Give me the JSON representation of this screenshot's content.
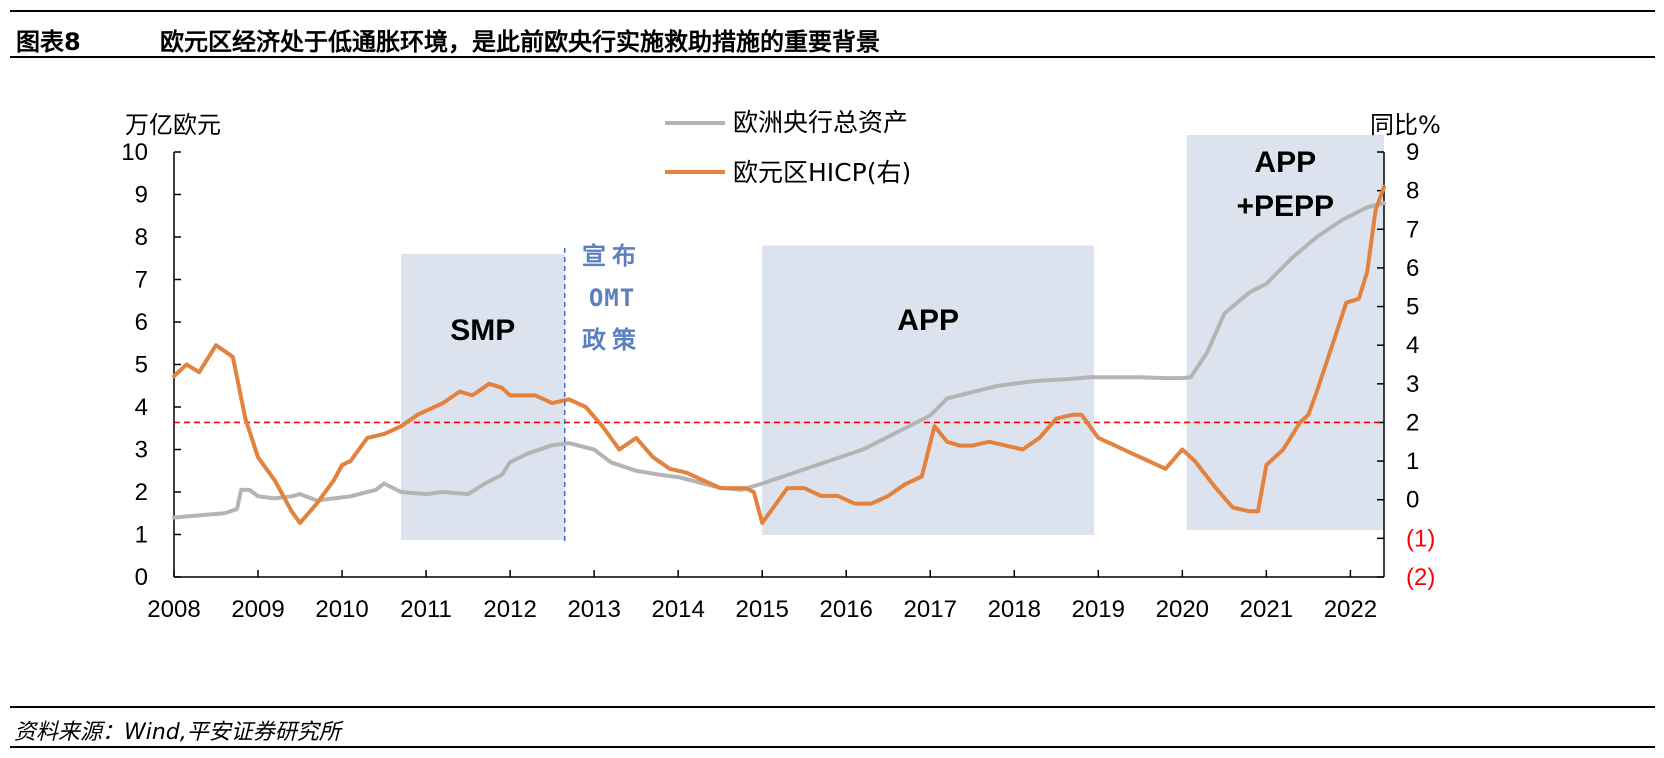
{
  "header": {
    "label": "图表8",
    "title": "欧元区经济处于低通胀环境，是此前欧央行实施救助措施的重要背景"
  },
  "footer": {
    "source": "资料来源：Wind,平安证券研究所"
  },
  "colors": {
    "ecb_line": "#b4b4b4",
    "hicp_line": "#e3823f",
    "shade": "#dde3ee",
    "ref_line": "#ff0000",
    "neg_tick": "#ff0000",
    "omt_text": "#5b7fbf"
  },
  "chart_data": {
    "type": "line",
    "title": "",
    "ylabel_left": "万亿欧元",
    "ylabel_right": "同比%",
    "xlim": [
      2008,
      2022.4
    ],
    "ylim_left": [
      0,
      10
    ],
    "ylim_right": [
      -2,
      9
    ],
    "x_ticks": [
      "2008",
      "2009",
      "2010",
      "2011",
      "2012",
      "2013",
      "2014",
      "2015",
      "2016",
      "2017",
      "2018",
      "2019",
      "2020",
      "2021",
      "2022"
    ],
    "y_left_ticks": [
      "0",
      "1",
      "2",
      "3",
      "4",
      "5",
      "6",
      "7",
      "8",
      "9",
      "10"
    ],
    "y_right_ticks": [
      "(2)",
      "(1)",
      "0",
      "1",
      "2",
      "3",
      "4",
      "5",
      "6",
      "7",
      "8",
      "9"
    ],
    "reference_line": {
      "axis": "right",
      "value": 2
    },
    "legend": [
      "欧洲央行总资产",
      "欧元区HICP(右)"
    ],
    "shaded_regions": [
      {
        "label": "SMP",
        "x_start": 2010.7,
        "x_end": 2012.65,
        "y_top": 7.6
      },
      {
        "label": "APP",
        "x_start": 2015.0,
        "x_end": 2018.95,
        "y_top": 7.8
      },
      {
        "label": "APP",
        "label2": "+PEPP",
        "x_start": 2020.05,
        "x_end": 2022.4,
        "y_top": 10.4
      }
    ],
    "omt": {
      "x": 2012.65,
      "lines": [
        "宣布",
        "OMT",
        "政策"
      ]
    },
    "series": [
      {
        "name": "欧洲央行总资产",
        "axis": "left",
        "x": [
          2008.0,
          2008.3,
          2008.6,
          2008.75,
          2008.8,
          2008.9,
          2009.0,
          2009.2,
          2009.4,
          2009.5,
          2009.7,
          2009.9,
          2010.1,
          2010.3,
          2010.4,
          2010.5,
          2010.7,
          2011.0,
          2011.2,
          2011.5,
          2011.7,
          2011.9,
          2012.0,
          2012.2,
          2012.5,
          2012.7,
          2013.0,
          2013.2,
          2013.5,
          2013.8,
          2014.0,
          2014.3,
          2014.5,
          2014.75,
          2015.0,
          2015.3,
          2015.6,
          2015.9,
          2016.2,
          2016.5,
          2016.8,
          2017.0,
          2017.2,
          2017.5,
          2017.8,
          2018.0,
          2018.3,
          2018.6,
          2018.9,
          2019.2,
          2019.5,
          2019.8,
          2020.0,
          2020.1,
          2020.3,
          2020.5,
          2020.8,
          2021.0,
          2021.3,
          2021.6,
          2021.9,
          2022.2,
          2022.4
        ],
        "y": [
          1.4,
          1.45,
          1.5,
          1.6,
          2.05,
          2.05,
          1.9,
          1.85,
          1.9,
          1.95,
          1.8,
          1.85,
          1.9,
          2.0,
          2.05,
          2.2,
          2.0,
          1.95,
          2.0,
          1.95,
          2.2,
          2.4,
          2.7,
          2.9,
          3.1,
          3.15,
          3.0,
          2.7,
          2.5,
          2.4,
          2.35,
          2.2,
          2.1,
          2.05,
          2.2,
          2.4,
          2.6,
          2.8,
          3.0,
          3.3,
          3.6,
          3.8,
          4.2,
          4.35,
          4.5,
          4.55,
          4.62,
          4.65,
          4.7,
          4.7,
          4.7,
          4.68,
          4.68,
          4.7,
          5.3,
          6.2,
          6.7,
          6.9,
          7.5,
          8.0,
          8.4,
          8.7,
          8.8
        ]
      },
      {
        "name": "欧元区HICP(右)",
        "axis": "right",
        "x": [
          2008.0,
          2008.15,
          2008.3,
          2008.5,
          2008.7,
          2008.85,
          2009.0,
          2009.2,
          2009.4,
          2009.5,
          2009.7,
          2009.9,
          2010.0,
          2010.1,
          2010.3,
          2010.5,
          2010.7,
          2010.9,
          2011.2,
          2011.4,
          2011.55,
          2011.75,
          2011.9,
          2012.0,
          2012.3,
          2012.5,
          2012.7,
          2012.9,
          2013.1,
          2013.3,
          2013.5,
          2013.7,
          2013.9,
          2014.1,
          2014.3,
          2014.5,
          2014.7,
          2014.8,
          2014.9,
          2015.0,
          2015.1,
          2015.3,
          2015.5,
          2015.7,
          2015.9,
          2016.1,
          2016.3,
          2016.5,
          2016.7,
          2016.9,
          2017.05,
          2017.2,
          2017.35,
          2017.5,
          2017.7,
          2017.9,
          2018.1,
          2018.3,
          2018.5,
          2018.7,
          2018.8,
          2019.0,
          2019.2,
          2019.4,
          2019.6,
          2019.8,
          2020.0,
          2020.15,
          2020.4,
          2020.6,
          2020.8,
          2020.9,
          2021.0,
          2021.2,
          2021.4,
          2021.5,
          2021.6,
          2021.8,
          2021.95,
          2022.1,
          2022.2,
          2022.3,
          2022.4
        ],
        "y": [
          3.2,
          3.5,
          3.3,
          4.0,
          3.7,
          2.1,
          1.1,
          0.5,
          -0.3,
          -0.6,
          -0.1,
          0.5,
          0.9,
          1.0,
          1.6,
          1.7,
          1.9,
          2.2,
          2.5,
          2.8,
          2.7,
          3.0,
          2.9,
          2.7,
          2.7,
          2.5,
          2.6,
          2.4,
          1.9,
          1.3,
          1.6,
          1.1,
          0.8,
          0.7,
          0.5,
          0.3,
          0.3,
          0.3,
          0.2,
          -0.6,
          -0.3,
          0.3,
          0.3,
          0.1,
          0.1,
          -0.1,
          -0.1,
          0.1,
          0.4,
          0.6,
          1.9,
          1.5,
          1.4,
          1.4,
          1.5,
          1.4,
          1.3,
          1.6,
          2.1,
          2.2,
          2.2,
          1.6,
          1.4,
          1.2,
          1.0,
          0.8,
          1.3,
          1.0,
          0.3,
          -0.2,
          -0.3,
          -0.3,
          0.9,
          1.3,
          2.0,
          2.2,
          2.8,
          4.1,
          5.1,
          5.2,
          5.9,
          7.5,
          8.1
        ]
      }
    ]
  }
}
